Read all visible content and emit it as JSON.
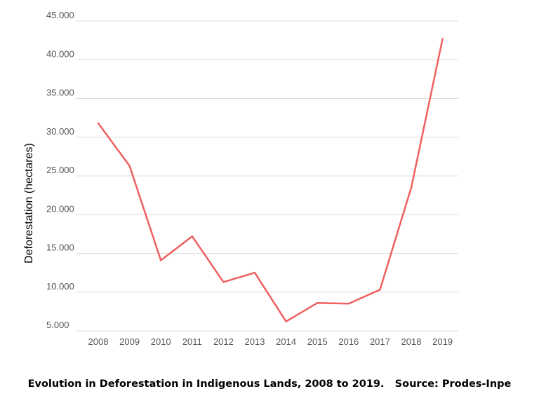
{
  "chart_data": {
    "type": "line",
    "categories": [
      "2008",
      "2009",
      "2010",
      "2011",
      "2012",
      "2013",
      "2014",
      "2015",
      "2016",
      "2017",
      "2018",
      "2019"
    ],
    "series": [
      {
        "values": [
          31800,
          26300,
          14100,
          17200,
          11300,
          12500,
          6200,
          8600,
          8500,
          10300,
          23500,
          42700
        ],
        "color": "#f06060"
      }
    ],
    "title": "",
    "xlabel": "",
    "ylabel": "Deforestation (hectares)",
    "ylim": [
      5000,
      45000
    ],
    "yticks": [
      {
        "value": 5000,
        "label": "5.000"
      },
      {
        "value": 10000,
        "label": "10.000"
      },
      {
        "value": 15000,
        "label": "15.000"
      },
      {
        "value": 20000,
        "label": "20.000"
      },
      {
        "value": 25000,
        "label": "25.000"
      },
      {
        "value": 30000,
        "label": "30.000"
      },
      {
        "value": 35000,
        "label": "35.000"
      },
      {
        "value": 40000,
        "label": "40.000"
      },
      {
        "value": 45000,
        "label": "45.000"
      }
    ],
    "grid": true,
    "grid_color": "#dddddd",
    "tick_label_color": "#555555"
  },
  "caption": "Evolution in Deforestation in Indigenous Lands, 2008 to 2019.   Source: Prodes-Inpe"
}
